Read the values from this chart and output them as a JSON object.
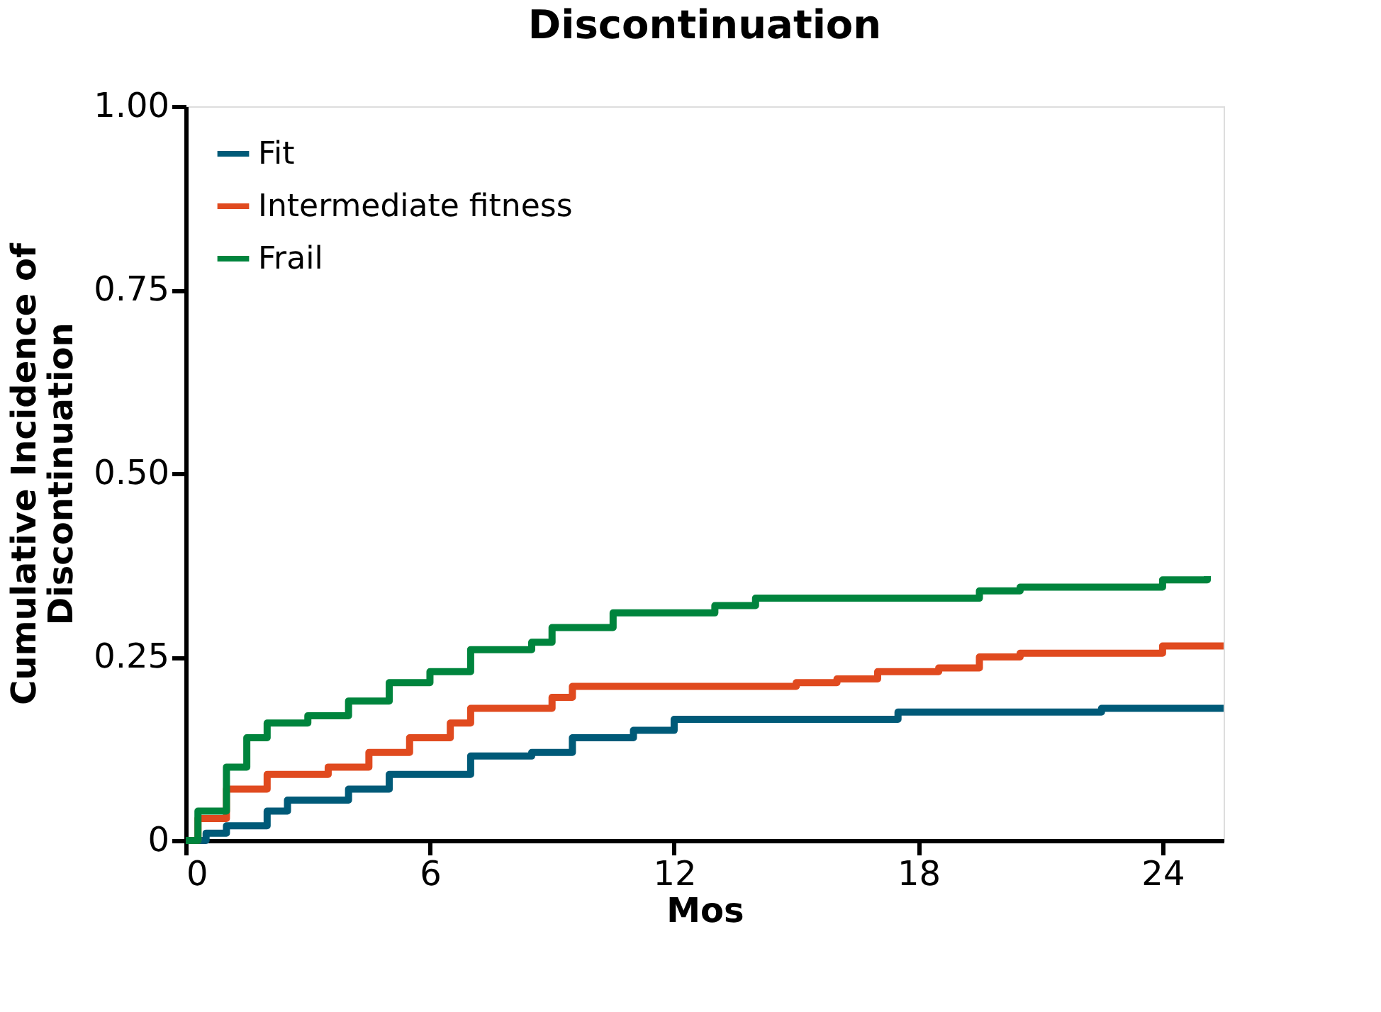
{
  "chart_data": {
    "type": "step",
    "title": "Discontinuation",
    "xlabel": "Mos",
    "ylabel": "Cumulative Incidence of\nDiscontinuation",
    "xlim": [
      0,
      25.5
    ],
    "ylim": [
      0,
      1
    ],
    "xticks": [
      0,
      6,
      12,
      18,
      24
    ],
    "yticks": [
      0,
      {
        "value": 0.25,
        "label": "0.25"
      },
      {
        "value": 0.5,
        "label": "0.50"
      },
      {
        "value": 0.75,
        "label": "0.75"
      },
      {
        "value": 1,
        "label": "1.00"
      }
    ],
    "grid": false,
    "legend": "top left",
    "marker": "none",
    "line_style": "solid",
    "series": [
      {
        "name": "Fit",
        "color": "#005a78",
        "x": [
          0,
          0.5,
          1,
          2,
          2.5,
          4,
          5,
          7,
          8.5,
          9.5,
          11,
          12,
          17,
          17.5,
          22.5,
          25.5
        ],
        "values": [
          0,
          0.01,
          0.02,
          0.04,
          0.055,
          0.07,
          0.09,
          0.115,
          0.12,
          0.14,
          0.15,
          0.165,
          0.165,
          0.175,
          0.18,
          0.18
        ]
      },
      {
        "name": "Intermediate fitness",
        "color": "#e04a1f",
        "x": [
          0,
          0.3,
          1,
          2,
          3.5,
          4.5,
          5.5,
          6.5,
          7,
          9,
          9.5,
          15,
          16,
          17,
          18.5,
          19.5,
          20.5,
          24,
          25.5
        ],
        "values": [
          0,
          0.03,
          0.07,
          0.09,
          0.1,
          0.12,
          0.14,
          0.16,
          0.18,
          0.195,
          0.21,
          0.215,
          0.22,
          0.23,
          0.235,
          0.25,
          0.255,
          0.265,
          0.265
        ]
      },
      {
        "name": "Frail",
        "color": "#00843d",
        "x": [
          0,
          0.3,
          1,
          1.5,
          2,
          3,
          4,
          5,
          6,
          7,
          8.5,
          9,
          10.5,
          13,
          14,
          19.5,
          20.5,
          24,
          25.1
        ],
        "values": [
          0,
          0.04,
          0.1,
          0.14,
          0.16,
          0.17,
          0.19,
          0.215,
          0.23,
          0.26,
          0.27,
          0.29,
          0.31,
          0.32,
          0.33,
          0.34,
          0.345,
          0.355,
          0.36
        ]
      }
    ]
  }
}
